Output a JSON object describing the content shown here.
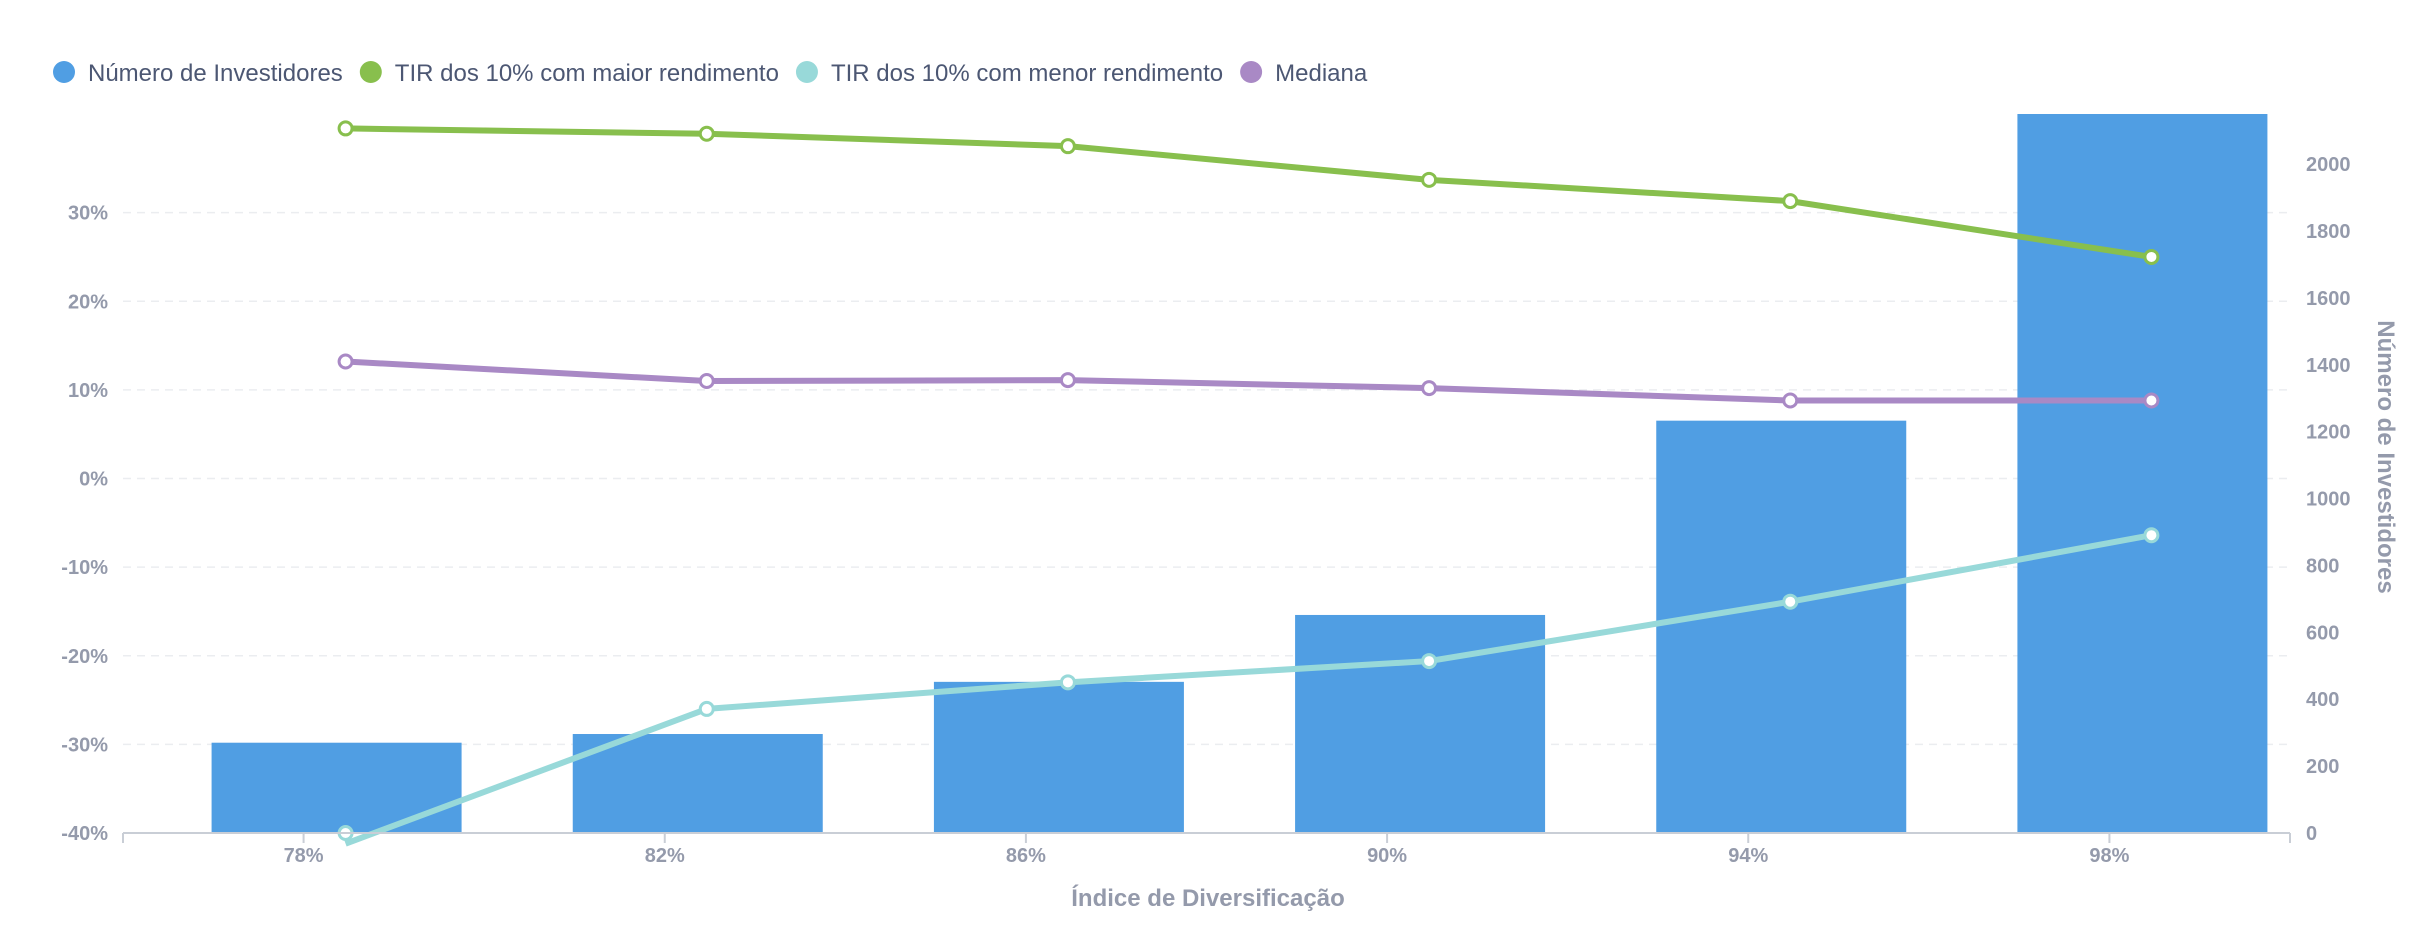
{
  "chart_data": {
    "type": "bar",
    "categories": [
      "78%",
      "82%",
      "86%",
      "90%",
      "94%",
      "98%"
    ],
    "xlabel": "Índice de Diversificação",
    "ylabel_left": "",
    "ylabel_right": "Número de Investidores",
    "ylim_left": [
      -40,
      40
    ],
    "ylim_right": [
      0,
      2150
    ],
    "yticks_left": [
      -40,
      -30,
      -20,
      -10,
      0,
      10,
      20,
      30
    ],
    "yticks_left_labels": [
      "-40%",
      "-30%",
      "-20%",
      "-10%",
      "0%",
      "10%",
      "20%",
      "30%"
    ],
    "yticks_right": [
      0,
      200,
      400,
      600,
      800,
      1000,
      1200,
      1400,
      1600,
      1800,
      2000
    ],
    "yticks_right_labels": [
      "0",
      "200",
      "400",
      "600",
      "800",
      "1000",
      "1200",
      "1400",
      "1600",
      "1800",
      "2000"
    ],
    "grid": true,
    "legend_position": "top-left",
    "series": [
      {
        "name": "Número de Investidores",
        "kind": "bar",
        "axis": "right",
        "color": "#509ee3",
        "values": [
          270,
          296,
          452,
          652,
          1233,
          2150
        ]
      },
      {
        "name": "TIR dos 10% com maior rendimento",
        "kind": "line",
        "axis": "left",
        "color": "#88bf4d",
        "values": [
          39.5,
          38.9,
          37.5,
          33.7,
          31.3,
          25.0
        ]
      },
      {
        "name": "TIR dos 10% com menor rendimento",
        "kind": "line",
        "axis": "left",
        "color": "#98d9d9",
        "values": [
          -41.2,
          -26.0,
          -23.0,
          -20.6,
          -13.9,
          -6.4
        ]
      },
      {
        "name": "Mediana",
        "kind": "line",
        "axis": "left",
        "color": "#a989c5",
        "values": [
          13.2,
          11.0,
          11.1,
          10.2,
          8.8,
          8.8
        ]
      }
    ]
  }
}
